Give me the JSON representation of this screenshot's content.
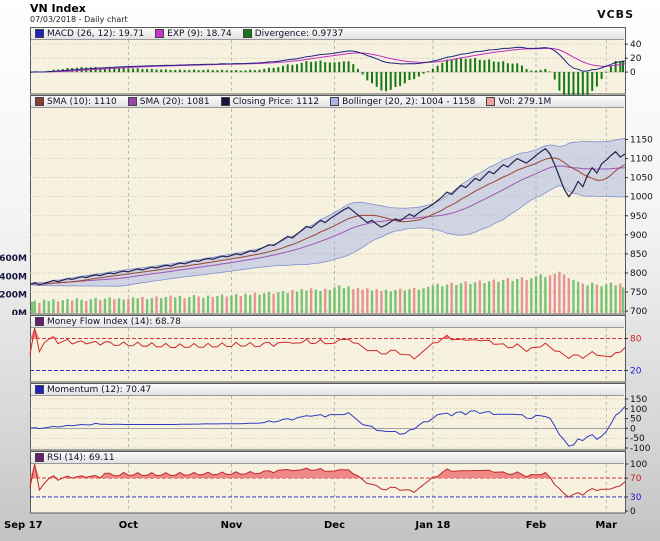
{
  "header": {
    "title": "VN Index",
    "subtitle": "07/03/2018 - Daily chart",
    "brand": "VCBS"
  },
  "colors": {
    "panel_bg": "#f7f2df",
    "panel_border": "#5a5a5a",
    "grid_month": "#a8a8a8",
    "grid_dot": "#b6b29a",
    "macd_line": "#1c2680",
    "exp_line": "#c32cc3",
    "divergence": "#157815",
    "close_line": "#23234d",
    "sma10": "#9a4632",
    "sma20": "#a055b5",
    "boll_fill": "#aab4e4",
    "boll_line": "#808fd0",
    "vol_up": "#63bb63",
    "vol_down": "#e28484",
    "mfi_line": "#d02828",
    "mfi_fill": "#ec7c7c",
    "momentum_line": "#2d3cc0",
    "rsi_line": "#c02828",
    "rsi_fill": "#ec7c7c",
    "tick_red": "#cc1c1c",
    "tick_blue": "#1c1ccc",
    "tick_default": "#101010"
  },
  "panels": {
    "macd": {
      "legend": [
        {
          "label": "MACD (26, 12): 19.71",
          "color": "#2222bb"
        },
        {
          "label": "EXP (9): 18.74",
          "color": "#cc33cc"
        },
        {
          "label": "Divergence: 0.9737",
          "color": "#157815"
        }
      ],
      "ylim": [
        -30,
        46
      ],
      "ticks": [
        {
          "v": 40,
          "label": "40"
        },
        {
          "v": 20,
          "label": "20"
        },
        {
          "v": 0,
          "label": "0"
        }
      ]
    },
    "main": {
      "legend": [
        {
          "label": "SMA (10): 1110",
          "color": "#8a4030"
        },
        {
          "label": "SMA (20): 1081",
          "color": "#9944aa"
        },
        {
          "label": "Closing Price: 1112",
          "color": "#15153d"
        },
        {
          "label": "Bollinger (20, 2): 1004 - 1158",
          "color": "#aab4e4"
        },
        {
          "label": "Vol: 279.1M",
          "color": "#efa0a0"
        }
      ],
      "price": {
        "ylim": [
          695,
          1230
        ],
        "ticks": [
          1150,
          1100,
          1050,
          1000,
          950,
          900,
          850,
          800,
          750,
          700
        ]
      },
      "volume": {
        "axis_max": 600,
        "axis_height_frac": 0.27,
        "ticks": [
          {
            "v": 600,
            "label": "600M"
          },
          {
            "v": 400,
            "label": "400M"
          },
          {
            "v": 200,
            "label": "200M"
          },
          {
            "v": 0,
            "label": "0M"
          }
        ]
      }
    },
    "mfi": {
      "legend": [
        {
          "label": "Money Flow Index (14): 68.78",
          "color": "#6a1b6a"
        }
      ],
      "ylim": [
        0,
        100
      ],
      "fill_above": 80,
      "thresholds": [
        {
          "v": 80,
          "color": "#cc1c1c"
        },
        {
          "v": 20,
          "color": "#1c1ccc"
        }
      ],
      "ticks": [
        {
          "v": 80,
          "label": "80",
          "color": "#cc1c1c"
        },
        {
          "v": 20,
          "label": "20",
          "color": "#1c1ccc"
        }
      ]
    },
    "momentum": {
      "legend": [
        {
          "label": "Momentum (12): 70.47",
          "color": "#2222bb"
        }
      ],
      "ylim": [
        -105,
        165
      ],
      "ticks": [
        {
          "v": 150,
          "label": "150"
        },
        {
          "v": 100,
          "label": "100"
        },
        {
          "v": 50,
          "label": "50"
        },
        {
          "v": 0,
          "label": "0"
        },
        {
          "v": -50,
          "label": "-50"
        },
        {
          "v": -100,
          "label": "-100"
        }
      ]
    },
    "rsi": {
      "legend": [
        {
          "label": "RSI (14): 69.11",
          "color": "#6a1b6a"
        }
      ],
      "ylim": [
        0,
        100
      ],
      "fill_above": 70,
      "thresholds": [
        {
          "v": 70,
          "color": "#cc1c1c"
        },
        {
          "v": 30,
          "color": "#1c1ccc"
        }
      ],
      "ticks": [
        {
          "v": 100,
          "label": "100"
        },
        {
          "v": 70,
          "label": "70",
          "color": "#cc1c1c"
        },
        {
          "v": 30,
          "label": "30",
          "color": "#1c1ccc"
        },
        {
          "v": 0,
          "label": "0"
        }
      ]
    }
  },
  "chart_data": {
    "type": "line",
    "title": "VN Index",
    "subtitle": "07/03/2018 - Daily chart",
    "legend_position": "top-of-each-panel",
    "grid": true,
    "months": [
      {
        "label": "Sep 17",
        "i": 0
      },
      {
        "label": "Oct",
        "i": 21
      },
      {
        "label": "Nov",
        "i": 43
      },
      {
        "label": "Dec",
        "i": 65
      },
      {
        "label": "Jan 18",
        "i": 86
      },
      {
        "label": "Feb",
        "i": 108
      },
      {
        "label": "Mar",
        "i": 123
      }
    ],
    "close": [
      770,
      774,
      769,
      772,
      776,
      780,
      777,
      781,
      785,
      783,
      787,
      790,
      788,
      792,
      795,
      793,
      797,
      800,
      798,
      802,
      805,
      803,
      807,
      810,
      808,
      812,
      815,
      813,
      817,
      820,
      818,
      822,
      826,
      824,
      828,
      832,
      830,
      835,
      838,
      836,
      840,
      844,
      842,
      846,
      850,
      848,
      853,
      858,
      856,
      862,
      868,
      874,
      872,
      880,
      888,
      896,
      892,
      902,
      912,
      922,
      918,
      928,
      938,
      932,
      942,
      950,
      958,
      966,
      972,
      962,
      952,
      942,
      932,
      938,
      928,
      920,
      926,
      934,
      942,
      936,
      946,
      954,
      948,
      958,
      966,
      972,
      980,
      990,
      1000,
      1012,
      1006,
      1018,
      1030,
      1024,
      1036,
      1048,
      1042,
      1054,
      1066,
      1060,
      1072,
      1084,
      1078,
      1090,
      1100,
      1094,
      1088,
      1098,
      1108,
      1118,
      1126,
      1112,
      1084,
      1052,
      1020,
      1000,
      1016,
      1040,
      1026,
      1056,
      1076,
      1062,
      1086,
      1096,
      1108,
      1118,
      1104,
      1112
    ],
    "volume_m": [
      120,
      135,
      110,
      145,
      130,
      150,
      125,
      140,
      155,
      135,
      160,
      145,
      130,
      150,
      165,
      140,
      155,
      170,
      150,
      160,
      145,
      155,
      170,
      160,
      175,
      150,
      165,
      180,
      160,
      175,
      190,
      170,
      185,
      160,
      175,
      195,
      180,
      165,
      190,
      175,
      185,
      200,
      180,
      190,
      205,
      185,
      210,
      195,
      220,
      200,
      215,
      230,
      210,
      225,
      240,
      220,
      250,
      235,
      260,
      245,
      270,
      255,
      240,
      265,
      250,
      280,
      300,
      270,
      290,
      260,
      275,
      255,
      270,
      245,
      260,
      240,
      255,
      235,
      250,
      265,
      245,
      260,
      275,
      255,
      270,
      285,
      300,
      320,
      290,
      310,
      330,
      305,
      325,
      345,
      315,
      335,
      355,
      325,
      345,
      365,
      340,
      360,
      380,
      350,
      370,
      390,
      360,
      380,
      400,
      420,
      390,
      410,
      430,
      450,
      420,
      380,
      360,
      340,
      320,
      300,
      330,
      310,
      290,
      310,
      330,
      300,
      320,
      279
    ],
    "indicators": {
      "macd": {
        "params": [
          26,
          12
        ],
        "last": 19.71
      },
      "exp": {
        "params": [
          9
        ],
        "last": 18.74
      },
      "divergence": {
        "last": 0.9737
      },
      "sma10": {
        "last": 1110
      },
      "sma20": {
        "last": 1081
      },
      "closing_price_last": 1112,
      "bollinger": {
        "params": [
          20,
          2
        ],
        "last_low": 1004,
        "last_high": 1158
      },
      "volume_last": "279.1M",
      "mfi": {
        "params": [
          14
        ],
        "last": 68.78
      },
      "momentum": {
        "params": [
          12
        ],
        "last": 70.47
      },
      "rsi": {
        "params": [
          14
        ],
        "last": 69.11
      }
    }
  }
}
